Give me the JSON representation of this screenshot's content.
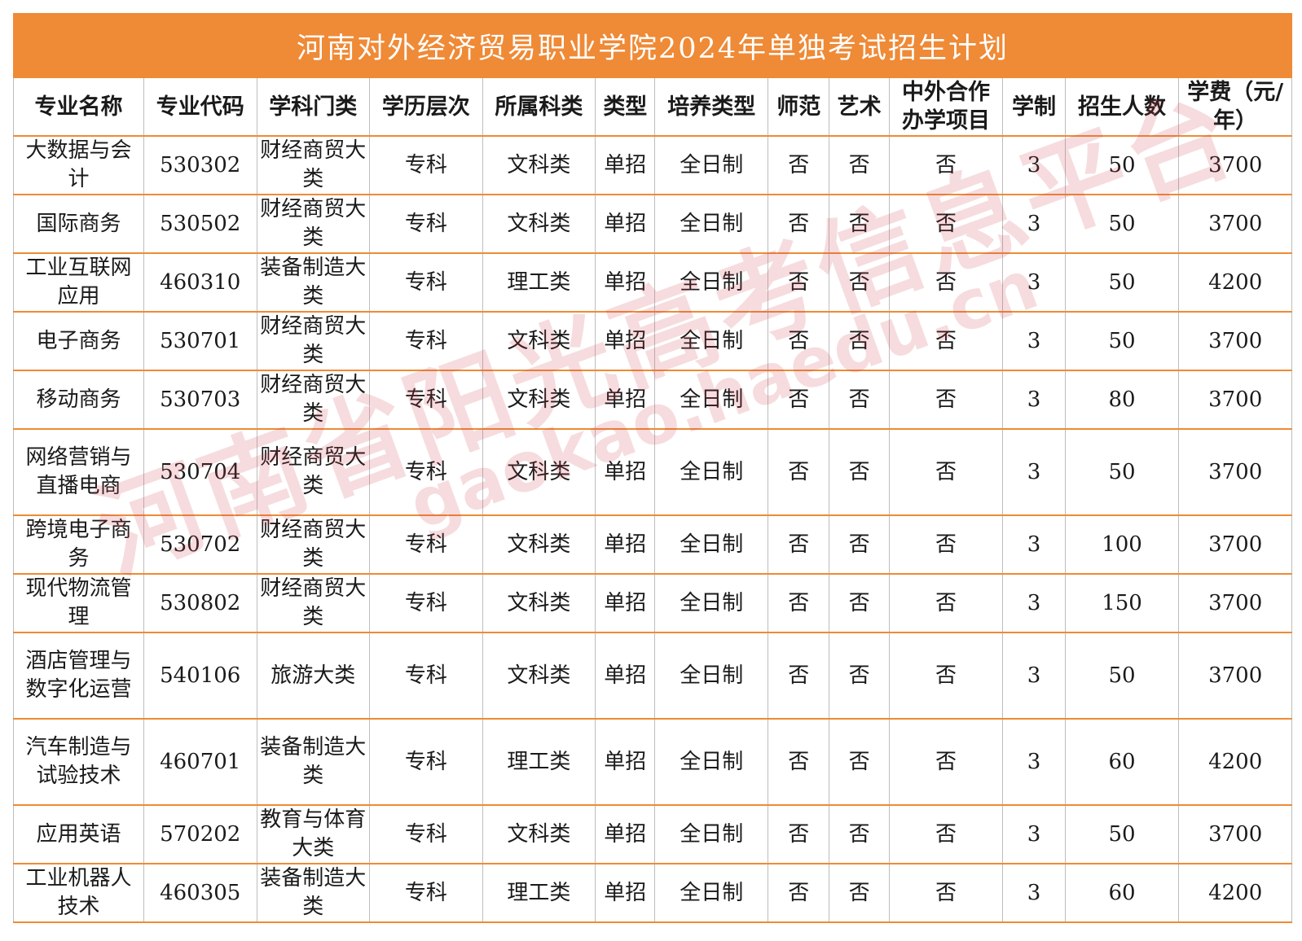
{
  "title": "河南对外经济贸易职业学院2024年单独考试招生计划",
  "headers": [
    "专业名称",
    "专业代码",
    "学科门类",
    "学历层次",
    "所属科类",
    "类型",
    "培养类型",
    "师范",
    "艺术",
    "中外合作办学项目",
    "学制",
    "招生人数",
    "学费（元/年）"
  ],
  "rows": [
    [
      "大数据与会计",
      "530302",
      "财经商贸大类",
      "专科",
      "文科类",
      "单招",
      "全日制",
      "否",
      "否",
      "否",
      "3",
      "50",
      "3700"
    ],
    [
      "国际商务",
      "530502",
      "财经商贸大类",
      "专科",
      "文科类",
      "单招",
      "全日制",
      "否",
      "否",
      "否",
      "3",
      "50",
      "3700"
    ],
    [
      "工业互联网应用",
      "460310",
      "装备制造大类",
      "专科",
      "理工类",
      "单招",
      "全日制",
      "否",
      "否",
      "否",
      "3",
      "50",
      "4200"
    ],
    [
      "电子商务",
      "530701",
      "财经商贸大类",
      "专科",
      "文科类",
      "单招",
      "全日制",
      "否",
      "否",
      "否",
      "3",
      "50",
      "3700"
    ],
    [
      "移动商务",
      "530703",
      "财经商贸大类",
      "专科",
      "文科类",
      "单招",
      "全日制",
      "否",
      "否",
      "否",
      "3",
      "80",
      "3700"
    ],
    [
      "网络营销与直播电商",
      "530704",
      "财经商贸大类",
      "专科",
      "文科类",
      "单招",
      "全日制",
      "否",
      "否",
      "否",
      "3",
      "50",
      "3700"
    ],
    [
      "跨境电子商务",
      "530702",
      "财经商贸大类",
      "专科",
      "文科类",
      "单招",
      "全日制",
      "否",
      "否",
      "否",
      "3",
      "100",
      "3700"
    ],
    [
      "现代物流管理",
      "530802",
      "财经商贸大类",
      "专科",
      "文科类",
      "单招",
      "全日制",
      "否",
      "否",
      "否",
      "3",
      "150",
      "3700"
    ],
    [
      "酒店管理与数字化运营",
      "540106",
      "旅游大类",
      "专科",
      "文科类",
      "单招",
      "全日制",
      "否",
      "否",
      "否",
      "3",
      "50",
      "3700"
    ],
    [
      "汽车制造与试验技术",
      "460701",
      "装备制造大类",
      "专科",
      "理工类",
      "单招",
      "全日制",
      "否",
      "否",
      "否",
      "3",
      "60",
      "4200"
    ],
    [
      "应用英语",
      "570202",
      "教育与体育大类",
      "专科",
      "文科类",
      "单招",
      "全日制",
      "否",
      "否",
      "否",
      "3",
      "50",
      "3700"
    ],
    [
      "工业机器人技术",
      "460305",
      "装备制造大类",
      "专科",
      "理工类",
      "单招",
      "全日制",
      "否",
      "否",
      "否",
      "3",
      "60",
      "4200"
    ]
  ],
  "watermark": {
    "cn": "河南省阳光高考信息平台",
    "url": "gaokao.haedu.cn"
  },
  "colors": {
    "header_bar": "#EF8A36",
    "row_line": "#EF8A36",
    "watermark": "#CD3C46"
  }
}
